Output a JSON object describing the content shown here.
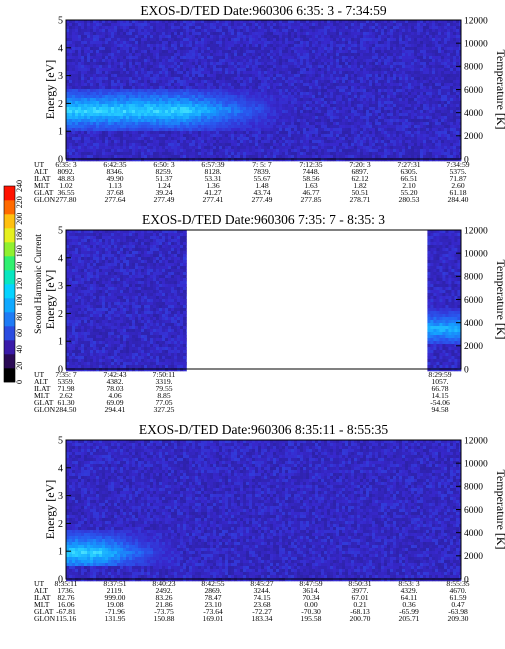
{
  "chart_data": [
    {
      "type": "heatmap",
      "title": "EXOS-D/TED  Date:960306  6:35: 3 - 7:34:59",
      "ylabel": "Energy [eV]",
      "ylabel_right": "Temperature [K]",
      "ylim": [
        0,
        5
      ],
      "ylim_right": [
        0,
        12000
      ],
      "yticks": [
        "0",
        "1",
        "2",
        "3",
        "4",
        "5"
      ],
      "yticks_right": [
        "0",
        "2000",
        "4000",
        "6000",
        "8000",
        "10000",
        "12000"
      ],
      "data_coverage": [
        [
          0.0,
          1.0
        ]
      ],
      "energy_band": {
        "low": 1.1,
        "high": 2.6,
        "peak": 1.8,
        "intense_until": 0.3,
        "fades_by": 0.48
      },
      "ephemeris": {
        "labels": [
          "UT",
          "ALT",
          "ILAT",
          "MLT",
          "GLAT",
          "GLON"
        ],
        "columns": [
          [
            "6:35: 3",
            "8092.",
            "48.83",
            "1.02",
            "36.55",
            "277.80"
          ],
          [
            "6:42:35",
            "8346.",
            "49.90",
            "1.13",
            "37.68",
            "277.64"
          ],
          [
            "6:50: 3",
            "8259.",
            "51.37",
            "1.24",
            "39.24",
            "277.49"
          ],
          [
            "6:57:39",
            "8128.",
            "53.31",
            "1.36",
            "41.27",
            "277.41"
          ],
          [
            "7: 5: 7",
            "7839.",
            "55.67",
            "1.48",
            "43.74",
            "277.49"
          ],
          [
            "7:12:35",
            "7448.",
            "58.56",
            "1.63",
            "46.77",
            "277.85"
          ],
          [
            "7:20: 3",
            "6897.",
            "62.12",
            "1.82",
            "50.51",
            "278.71"
          ],
          [
            "7:27:31",
            "6305.",
            "66.51",
            "2.10",
            "55.20",
            "280.53"
          ],
          [
            "7:34:59",
            "5375.",
            "71.87",
            "2.60",
            "61.18",
            "284.40"
          ]
        ]
      }
    },
    {
      "type": "heatmap",
      "title": "EXOS-D/TED  Date:960306  7:35: 7 - 8:35: 3",
      "ylabel": "Energy [eV]",
      "ylabel_right": "Temperature [K]",
      "ylim": [
        0,
        5
      ],
      "ylim_right": [
        0,
        12000
      ],
      "yticks": [
        "0",
        "1",
        "2",
        "3",
        "4",
        "5"
      ],
      "yticks_right": [
        "0",
        "2000",
        "4000",
        "6000",
        "8000",
        "10000",
        "12000"
      ],
      "data_coverage": [
        [
          0.0,
          0.305
        ],
        [
          0.915,
          1.0
        ]
      ],
      "energy_band": {
        "low": 1.0,
        "high": 2.2,
        "peak": 1.5,
        "start": 0.915
      },
      "ephemeris": {
        "labels": [
          "UT",
          "ALT",
          "ILAT",
          "MLT",
          "GLAT",
          "GLON"
        ],
        "columns": [
          [
            "7:35: 7",
            "5359.",
            "71.98",
            "2.62",
            "61.30",
            "284.50"
          ],
          [
            "7:42:43",
            "4382.",
            "78.03",
            "4.06",
            "69.09",
            "294.41"
          ],
          [
            "7:50:11",
            "3319.",
            "79.55",
            "8.85",
            "77.05",
            "327.25"
          ],
          [
            "8:29:59",
            "1057.",
            "66.78",
            "14.15",
            "-54.06",
            "94.58"
          ]
        ]
      },
      "colorbar": {
        "label": "Second Harmonic Current",
        "ticks": [
          "0",
          "20",
          "40",
          "60",
          "80",
          "100",
          "120",
          "140",
          "160",
          "180",
          "200",
          "220",
          "240"
        ],
        "range": [
          0,
          240
        ]
      }
    },
    {
      "type": "heatmap",
      "title": "EXOS-D/TED  Date:960306  8:35:11 - 8:55:35",
      "ylabel": "Energy [eV]",
      "ylabel_right": "Temperature [K]",
      "ylim": [
        0,
        5
      ],
      "ylim_right": [
        0,
        12000
      ],
      "yticks": [
        "0",
        "1",
        "2",
        "3",
        "4",
        "5"
      ],
      "yticks_right": [
        "0",
        "2000",
        "4000",
        "6000",
        "8000",
        "10000",
        "12000"
      ],
      "data_coverage": [
        [
          0.0,
          1.0
        ]
      ],
      "energy_band": {
        "low": 0.5,
        "high": 1.8,
        "peak": 1.0,
        "intense_until": 0.08,
        "fades_by": 0.2
      },
      "ephemeris": {
        "labels": [
          "UT",
          "ALT",
          "ILAT",
          "MLT",
          "GLAT",
          "GLON"
        ],
        "columns": [
          [
            "8:35:11",
            "1736.",
            "82.76",
            "16.06",
            "-67.81",
            "115.16"
          ],
          [
            "8:37:51",
            "2119.",
            "999.00",
            "19.08",
            "-71.96",
            "131.95"
          ],
          [
            "8:40:23",
            "2492.",
            "83.26",
            "21.86",
            "-73.75",
            "150.88"
          ],
          [
            "8:42:55",
            "2869.",
            "78.47",
            "23.10",
            "-73.64",
            "169.01"
          ],
          [
            "8:45:27",
            "3244.",
            "74.15",
            "23.68",
            "-72.27",
            "183.34"
          ],
          [
            "8:47:59",
            "3614.",
            "70.34",
            "0.00",
            "-70.30",
            "195.58"
          ],
          [
            "8:50:31",
            "3977.",
            "67.01",
            "0.21",
            "-68.13",
            "200.70"
          ],
          [
            "8:53: 3",
            "4329.",
            "64.11",
            "0.36",
            "-65.99",
            "205.71"
          ],
          [
            "8:55:35",
            "4670.",
            "61.59",
            "0.47",
            "-63.98",
            "209.30"
          ]
        ]
      }
    }
  ]
}
